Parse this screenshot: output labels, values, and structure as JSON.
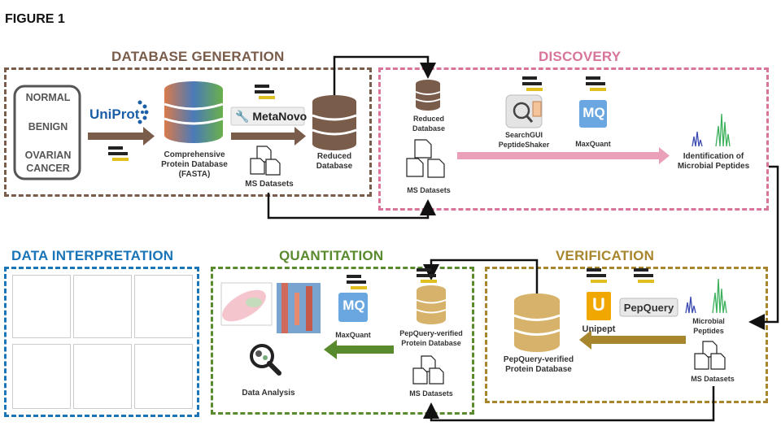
{
  "figure_label": "FIGURE 1",
  "colors": {
    "database_generation": "#7a5c4b",
    "discovery": "#d9749a",
    "data_interpretation": "#1a75b8",
    "quantitation": "#5a8a2e",
    "verification": "#a8862e",
    "arrow_dark": "#111111"
  },
  "sections": {
    "database_generation": "DATABASE GENERATION",
    "discovery": "DISCOVERY",
    "data_interpretation": "DATA INTERPRETATION",
    "quantitation": "QUANTITATION",
    "verification": "VERIFICATION"
  },
  "database_generation": {
    "cohorts": [
      "NORMAL",
      "BENIGN",
      "OVARIAN CANCER"
    ],
    "uniprot_logo": "UniProt",
    "comprehensive_db": [
      "Comprehensive",
      "Protein Database",
      "(FASTA)"
    ],
    "metanovo_logo": "MetaNovo",
    "ms_datasets": "MS Datasets",
    "reduced_db": [
      "Reduced",
      "Database"
    ]
  },
  "discovery": {
    "reduced_db": [
      "Reduced",
      "Database"
    ],
    "ms_datasets": "MS Datasets",
    "searchgui": [
      "SearchGUI",
      "PeptideShaker"
    ],
    "maxquant": "MaxQuant",
    "identification": [
      "Identification of",
      "Microbial Peptides"
    ]
  },
  "verification": {
    "unipept": "Unipept",
    "pepquery_logo": "PepQuery",
    "microbial_peptides": [
      "Microbial",
      "Peptides"
    ],
    "ms_datasets": "MS Datasets",
    "pepquery_db": [
      "PepQuery-verified",
      "Protein Database"
    ]
  },
  "quantitation": {
    "maxquant": "MaxQuant",
    "pepquery_db": [
      "PepQuery-verified",
      "Protein Database"
    ],
    "ms_datasets": "MS Datasets",
    "data_analysis": "Data Analysis"
  },
  "icons": {
    "raw_file": "RAW",
    "maxquant_glyph": "MQ",
    "unipept_glyph": "U"
  }
}
